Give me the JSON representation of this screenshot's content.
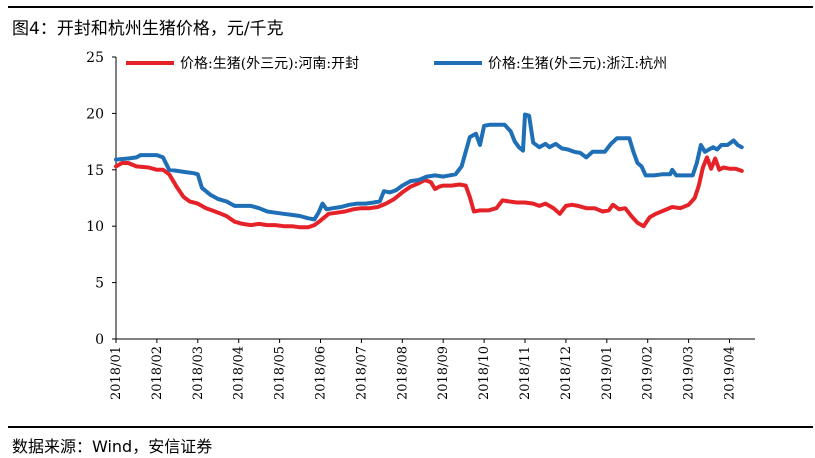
{
  "title": "图4：开封和杭州生猪价格，元/千克",
  "source": "数据来源：Wind，安信证券",
  "chart_data": {
    "type": "line",
    "ylim": [
      0,
      25
    ],
    "y_ticks": [
      "0",
      "5",
      "10",
      "15",
      "20",
      "25"
    ],
    "x_ticks": [
      "2018/01",
      "2018/02",
      "2018/03",
      "2018/04",
      "2018/05",
      "2018/06",
      "2018/07",
      "2018/08",
      "2018/09",
      "2018/10",
      "2018/11",
      "2018/12",
      "2019/01",
      "2019/02",
      "2019/03",
      "2019/04"
    ],
    "x_range": [
      0,
      15.35
    ],
    "grid": false,
    "legend_position": "top",
    "series": [
      {
        "name": "价格:生猪(外三元):河南:开封",
        "color": "#e52228",
        "points": [
          [
            0,
            15.3
          ],
          [
            0.15,
            15.6
          ],
          [
            0.3,
            15.6
          ],
          [
            0.5,
            15.3
          ],
          [
            0.8,
            15.2
          ],
          [
            1.0,
            15.0
          ],
          [
            1.15,
            15.0
          ],
          [
            1.3,
            14.6
          ],
          [
            1.5,
            13.4
          ],
          [
            1.65,
            12.6
          ],
          [
            1.8,
            12.2
          ],
          [
            2.0,
            12.0
          ],
          [
            2.2,
            11.6
          ],
          [
            2.35,
            11.4
          ],
          [
            2.5,
            11.2
          ],
          [
            2.7,
            10.9
          ],
          [
            2.9,
            10.4
          ],
          [
            3.1,
            10.2
          ],
          [
            3.3,
            10.1
          ],
          [
            3.5,
            10.2
          ],
          [
            3.7,
            10.1
          ],
          [
            3.9,
            10.1
          ],
          [
            4.1,
            10.0
          ],
          [
            4.3,
            10.0
          ],
          [
            4.5,
            9.9
          ],
          [
            4.7,
            9.9
          ],
          [
            4.85,
            10.1
          ],
          [
            5.0,
            10.5
          ],
          [
            5.1,
            10.8
          ],
          [
            5.2,
            11.1
          ],
          [
            5.4,
            11.2
          ],
          [
            5.6,
            11.3
          ],
          [
            5.8,
            11.5
          ],
          [
            6.0,
            11.6
          ],
          [
            6.2,
            11.6
          ],
          [
            6.4,
            11.7
          ],
          [
            6.6,
            12.0
          ],
          [
            6.8,
            12.4
          ],
          [
            7.0,
            13.0
          ],
          [
            7.2,
            13.5
          ],
          [
            7.4,
            13.8
          ],
          [
            7.55,
            14.1
          ],
          [
            7.7,
            13.9
          ],
          [
            7.8,
            13.3
          ],
          [
            7.9,
            13.5
          ],
          [
            8.0,
            13.6
          ],
          [
            8.2,
            13.6
          ],
          [
            8.4,
            13.7
          ],
          [
            8.55,
            13.6
          ],
          [
            8.65,
            12.6
          ],
          [
            8.75,
            11.3
          ],
          [
            8.9,
            11.4
          ],
          [
            9.1,
            11.4
          ],
          [
            9.3,
            11.6
          ],
          [
            9.45,
            12.3
          ],
          [
            9.6,
            12.2
          ],
          [
            9.8,
            12.1
          ],
          [
            10.0,
            12.1
          ],
          [
            10.2,
            12.0
          ],
          [
            10.35,
            11.8
          ],
          [
            10.5,
            12.0
          ],
          [
            10.7,
            11.6
          ],
          [
            10.85,
            11.1
          ],
          [
            11.0,
            11.8
          ],
          [
            11.15,
            11.9
          ],
          [
            11.3,
            11.8
          ],
          [
            11.5,
            11.6
          ],
          [
            11.7,
            11.6
          ],
          [
            11.9,
            11.3
          ],
          [
            12.05,
            11.4
          ],
          [
            12.15,
            11.9
          ],
          [
            12.3,
            11.5
          ],
          [
            12.45,
            11.6
          ],
          [
            12.6,
            10.9
          ],
          [
            12.75,
            10.3
          ],
          [
            12.9,
            10.0
          ],
          [
            13.05,
            10.8
          ],
          [
            13.2,
            11.1
          ],
          [
            13.4,
            11.4
          ],
          [
            13.6,
            11.7
          ],
          [
            13.8,
            11.6
          ],
          [
            14.0,
            11.9
          ],
          [
            14.15,
            12.5
          ],
          [
            14.25,
            13.6
          ],
          [
            14.35,
            15.2
          ],
          [
            14.45,
            16.1
          ],
          [
            14.55,
            15.1
          ],
          [
            14.65,
            16.0
          ],
          [
            14.75,
            15.0
          ],
          [
            14.85,
            15.2
          ],
          [
            15.0,
            15.1
          ],
          [
            15.15,
            15.1
          ],
          [
            15.3,
            14.9
          ]
        ]
      },
      {
        "name": "价格:生猪(外三元):浙江:杭州",
        "color": "#1f6fb7",
        "points": [
          [
            0,
            15.9
          ],
          [
            0.3,
            16.0
          ],
          [
            0.5,
            16.1
          ],
          [
            0.6,
            16.3
          ],
          [
            0.8,
            16.3
          ],
          [
            1.0,
            16.3
          ],
          [
            1.15,
            16.1
          ],
          [
            1.3,
            15.0
          ],
          [
            1.5,
            14.9
          ],
          [
            1.7,
            14.8
          ],
          [
            1.9,
            14.7
          ],
          [
            2.0,
            14.6
          ],
          [
            2.1,
            13.4
          ],
          [
            2.3,
            12.8
          ],
          [
            2.5,
            12.4
          ],
          [
            2.7,
            12.2
          ],
          [
            2.9,
            11.8
          ],
          [
            3.1,
            11.8
          ],
          [
            3.3,
            11.8
          ],
          [
            3.5,
            11.6
          ],
          [
            3.7,
            11.3
          ],
          [
            3.9,
            11.2
          ],
          [
            4.1,
            11.1
          ],
          [
            4.3,
            11.0
          ],
          [
            4.5,
            10.9
          ],
          [
            4.7,
            10.7
          ],
          [
            4.85,
            10.6
          ],
          [
            4.95,
            11.2
          ],
          [
            5.05,
            12.0
          ],
          [
            5.15,
            11.5
          ],
          [
            5.3,
            11.6
          ],
          [
            5.5,
            11.7
          ],
          [
            5.7,
            11.9
          ],
          [
            5.9,
            12.0
          ],
          [
            6.1,
            12.0
          ],
          [
            6.3,
            12.1
          ],
          [
            6.45,
            12.2
          ],
          [
            6.55,
            13.1
          ],
          [
            6.7,
            13.0
          ],
          [
            6.85,
            13.2
          ],
          [
            7.0,
            13.6
          ],
          [
            7.2,
            14.0
          ],
          [
            7.4,
            14.1
          ],
          [
            7.6,
            14.4
          ],
          [
            7.8,
            14.5
          ],
          [
            8.0,
            14.4
          ],
          [
            8.15,
            14.5
          ],
          [
            8.3,
            14.6
          ],
          [
            8.45,
            15.3
          ],
          [
            8.55,
            16.6
          ],
          [
            8.65,
            17.9
          ],
          [
            8.8,
            18.2
          ],
          [
            8.9,
            17.2
          ],
          [
            9.0,
            18.9
          ],
          [
            9.15,
            19.0
          ],
          [
            9.3,
            19.0
          ],
          [
            9.5,
            19.0
          ],
          [
            9.65,
            18.4
          ],
          [
            9.75,
            17.5
          ],
          [
            9.85,
            17.0
          ],
          [
            9.95,
            16.7
          ],
          [
            10.0,
            19.9
          ],
          [
            10.1,
            19.8
          ],
          [
            10.2,
            17.4
          ],
          [
            10.35,
            17.0
          ],
          [
            10.5,
            17.3
          ],
          [
            10.6,
            17.0
          ],
          [
            10.75,
            17.3
          ],
          [
            10.9,
            16.9
          ],
          [
            11.05,
            16.8
          ],
          [
            11.2,
            16.6
          ],
          [
            11.35,
            16.5
          ],
          [
            11.5,
            16.1
          ],
          [
            11.65,
            16.6
          ],
          [
            11.8,
            16.6
          ],
          [
            11.95,
            16.6
          ],
          [
            12.1,
            17.3
          ],
          [
            12.25,
            17.8
          ],
          [
            12.4,
            17.8
          ],
          [
            12.55,
            17.8
          ],
          [
            12.65,
            16.6
          ],
          [
            12.75,
            15.6
          ],
          [
            12.85,
            15.3
          ],
          [
            12.95,
            14.5
          ],
          [
            13.15,
            14.5
          ],
          [
            13.35,
            14.6
          ],
          [
            13.55,
            14.6
          ],
          [
            13.6,
            15.0
          ],
          [
            13.7,
            14.5
          ],
          [
            13.9,
            14.5
          ],
          [
            14.1,
            14.5
          ],
          [
            14.2,
            15.6
          ],
          [
            14.3,
            17.2
          ],
          [
            14.4,
            16.6
          ],
          [
            14.5,
            16.8
          ],
          [
            14.6,
            17.0
          ],
          [
            14.7,
            16.8
          ],
          [
            14.8,
            17.2
          ],
          [
            14.95,
            17.2
          ],
          [
            15.1,
            17.6
          ],
          [
            15.2,
            17.2
          ],
          [
            15.3,
            17.0
          ]
        ]
      }
    ]
  }
}
